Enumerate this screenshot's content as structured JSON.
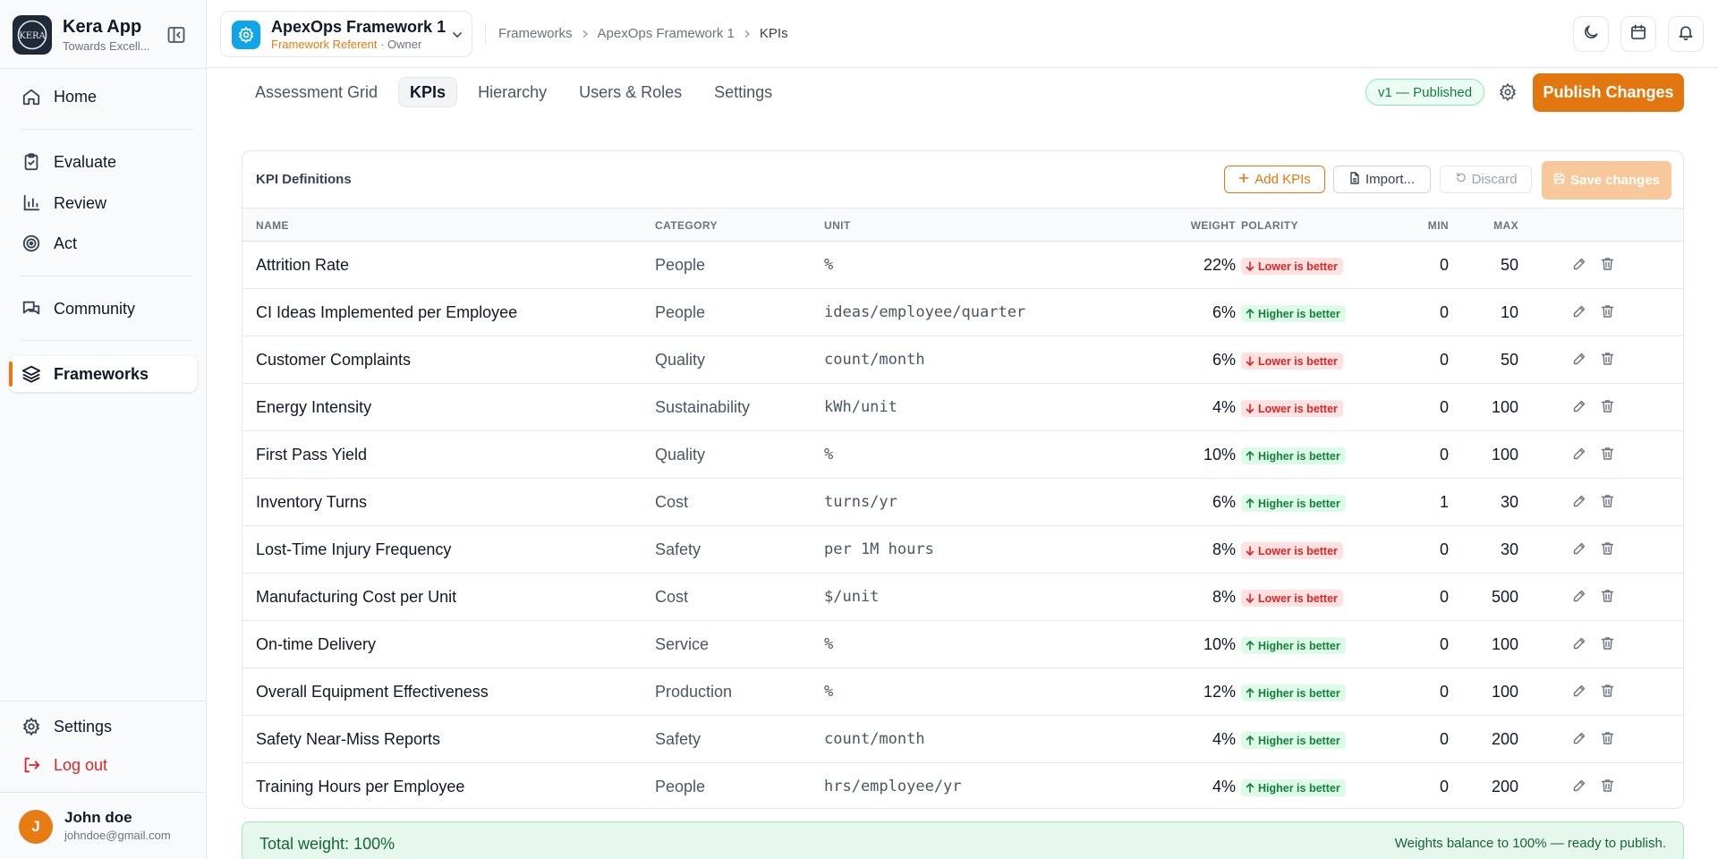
{
  "app": {
    "name": "Kera App",
    "subtitle": "Towards Excell...",
    "logo_text": "KERA"
  },
  "sidebar": {
    "items": [
      {
        "label": "Home",
        "icon": "home-icon"
      },
      {
        "label": "Evaluate",
        "icon": "clipboard-check-icon"
      },
      {
        "label": "Review",
        "icon": "bar-chart-icon"
      },
      {
        "label": "Act",
        "icon": "target-icon"
      },
      {
        "label": "Community",
        "icon": "chat-icon"
      },
      {
        "label": "Frameworks",
        "icon": "layers-icon",
        "active": true
      }
    ],
    "settings_label": "Settings",
    "logout_label": "Log out"
  },
  "user": {
    "initial": "J",
    "name": "John doe",
    "email": "johndoe@gmail.com"
  },
  "framework": {
    "name": "ApexOps Framework 1",
    "role": "Framework Referent",
    "role_suffix": " · Owner"
  },
  "breadcrumb": [
    "Frameworks",
    "ApexOps Framework 1",
    "KPIs"
  ],
  "tabs": [
    "Assessment Grid",
    "KPIs",
    "Hierarchy",
    "Users & Roles",
    "Settings"
  ],
  "active_tab": "KPIs",
  "version_badge": "v1 — Published",
  "publish_label": "Publish Changes",
  "card": {
    "title": "KPI Definitions",
    "add_label": "Add KPIs",
    "import_label": "Import...",
    "discard_label": "Discard",
    "save_label": "Save changes"
  },
  "columns": {
    "name": "NAME",
    "category": "CATEGORY",
    "unit": "UNIT",
    "weight": "WEIGHT",
    "polarity": "POLARITY",
    "min": "MIN",
    "max": "MAX"
  },
  "kpis": [
    {
      "name": "Attrition Rate",
      "category": "People",
      "unit": "%",
      "weight": "22%",
      "polarity": "Lower is better",
      "dir": "lower",
      "min": "0",
      "max": "50"
    },
    {
      "name": "CI Ideas Implemented per Employee",
      "category": "People",
      "unit": "ideas/employee/quarter",
      "weight": "6%",
      "polarity": "Higher is better",
      "dir": "higher",
      "min": "0",
      "max": "10"
    },
    {
      "name": "Customer Complaints",
      "category": "Quality",
      "unit": "count/month",
      "weight": "6%",
      "polarity": "Lower is better",
      "dir": "lower",
      "min": "0",
      "max": "50"
    },
    {
      "name": "Energy Intensity",
      "category": "Sustainability",
      "unit": "kWh/unit",
      "weight": "4%",
      "polarity": "Lower is better",
      "dir": "lower",
      "min": "0",
      "max": "100"
    },
    {
      "name": "First Pass Yield",
      "category": "Quality",
      "unit": "%",
      "weight": "10%",
      "polarity": "Higher is better",
      "dir": "higher",
      "min": "0",
      "max": "100"
    },
    {
      "name": "Inventory Turns",
      "category": "Cost",
      "unit": "turns/yr",
      "weight": "6%",
      "polarity": "Higher is better",
      "dir": "higher",
      "min": "1",
      "max": "30"
    },
    {
      "name": "Lost-Time Injury Frequency",
      "category": "Safety",
      "unit": "per 1M hours",
      "weight": "8%",
      "polarity": "Lower is better",
      "dir": "lower",
      "min": "0",
      "max": "30"
    },
    {
      "name": "Manufacturing Cost per Unit",
      "category": "Cost",
      "unit": "$/unit",
      "weight": "8%",
      "polarity": "Lower is better",
      "dir": "lower",
      "min": "0",
      "max": "500"
    },
    {
      "name": "On-time Delivery",
      "category": "Service",
      "unit": "%",
      "weight": "10%",
      "polarity": "Higher is better",
      "dir": "higher",
      "min": "0",
      "max": "100"
    },
    {
      "name": "Overall Equipment Effectiveness",
      "category": "Production",
      "unit": "%",
      "weight": "12%",
      "polarity": "Higher is better",
      "dir": "higher",
      "min": "0",
      "max": "100"
    },
    {
      "name": "Safety Near-Miss Reports",
      "category": "Safety",
      "unit": "count/month",
      "weight": "4%",
      "polarity": "Higher is better",
      "dir": "higher",
      "min": "0",
      "max": "200"
    },
    {
      "name": "Training Hours per Employee",
      "category": "People",
      "unit": "hrs/employee/yr",
      "weight": "4%",
      "polarity": "Higher is better",
      "dir": "higher",
      "min": "0",
      "max": "200"
    }
  ],
  "total": {
    "label": "Total weight: 100%",
    "message": "Weights balance to 100% — ready to publish."
  },
  "colors": {
    "accent": "#e3770f",
    "lower": "#dc2626",
    "higher": "#15803d",
    "framework_icon": "#0ea5e9"
  }
}
